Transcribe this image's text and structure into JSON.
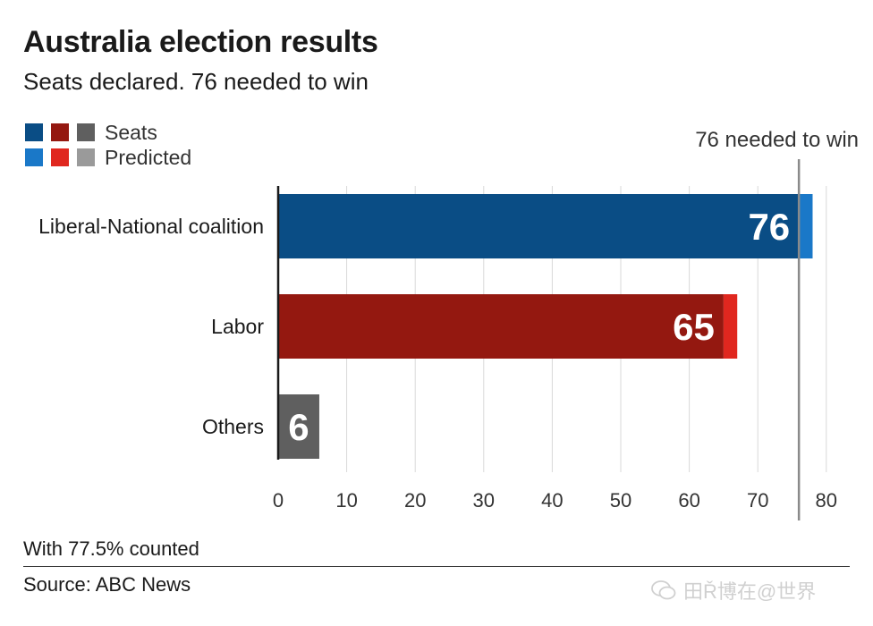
{
  "header": {
    "title": "Australia election results",
    "subtitle": "Seats declared. 76 needed to win"
  },
  "legend": {
    "seats_label": "Seats",
    "predicted_label": "Predicted",
    "seats_colors": [
      "#0a4d85",
      "#941810",
      "#5f5f5f"
    ],
    "predicted_colors": [
      "#1a78c8",
      "#e0271f",
      "#9a9a9a"
    ]
  },
  "chart_data": {
    "type": "bar",
    "orientation": "horizontal",
    "stacked": true,
    "title": "Australia election results",
    "subtitle": "Seats declared. 76 needed to win",
    "categories": [
      "Liberal-National coalition",
      "Labor",
      "Others"
    ],
    "series": [
      {
        "name": "Seats",
        "values": [
          76,
          65,
          6
        ],
        "colors": [
          "#0a4d85",
          "#941810",
          "#5f5f5f"
        ]
      },
      {
        "name": "Predicted",
        "values": [
          2,
          2,
          0
        ],
        "colors": [
          "#1a78c8",
          "#e0271f",
          "#9a9a9a"
        ]
      }
    ],
    "data_labels": [
      "76",
      "65",
      "6"
    ],
    "xlim": [
      0,
      80
    ],
    "xticks": [
      0,
      10,
      20,
      30,
      40,
      50,
      60,
      70,
      80
    ],
    "reference_line": {
      "value": 76,
      "label": "76 needed to win"
    },
    "grid": true,
    "legend": "top-left"
  },
  "footer": {
    "note": "With 77.5% counted",
    "source": "Source: ABC News"
  },
  "watermark": {
    "icon": "wechat-icon",
    "text": "田Ř博在@世界"
  }
}
